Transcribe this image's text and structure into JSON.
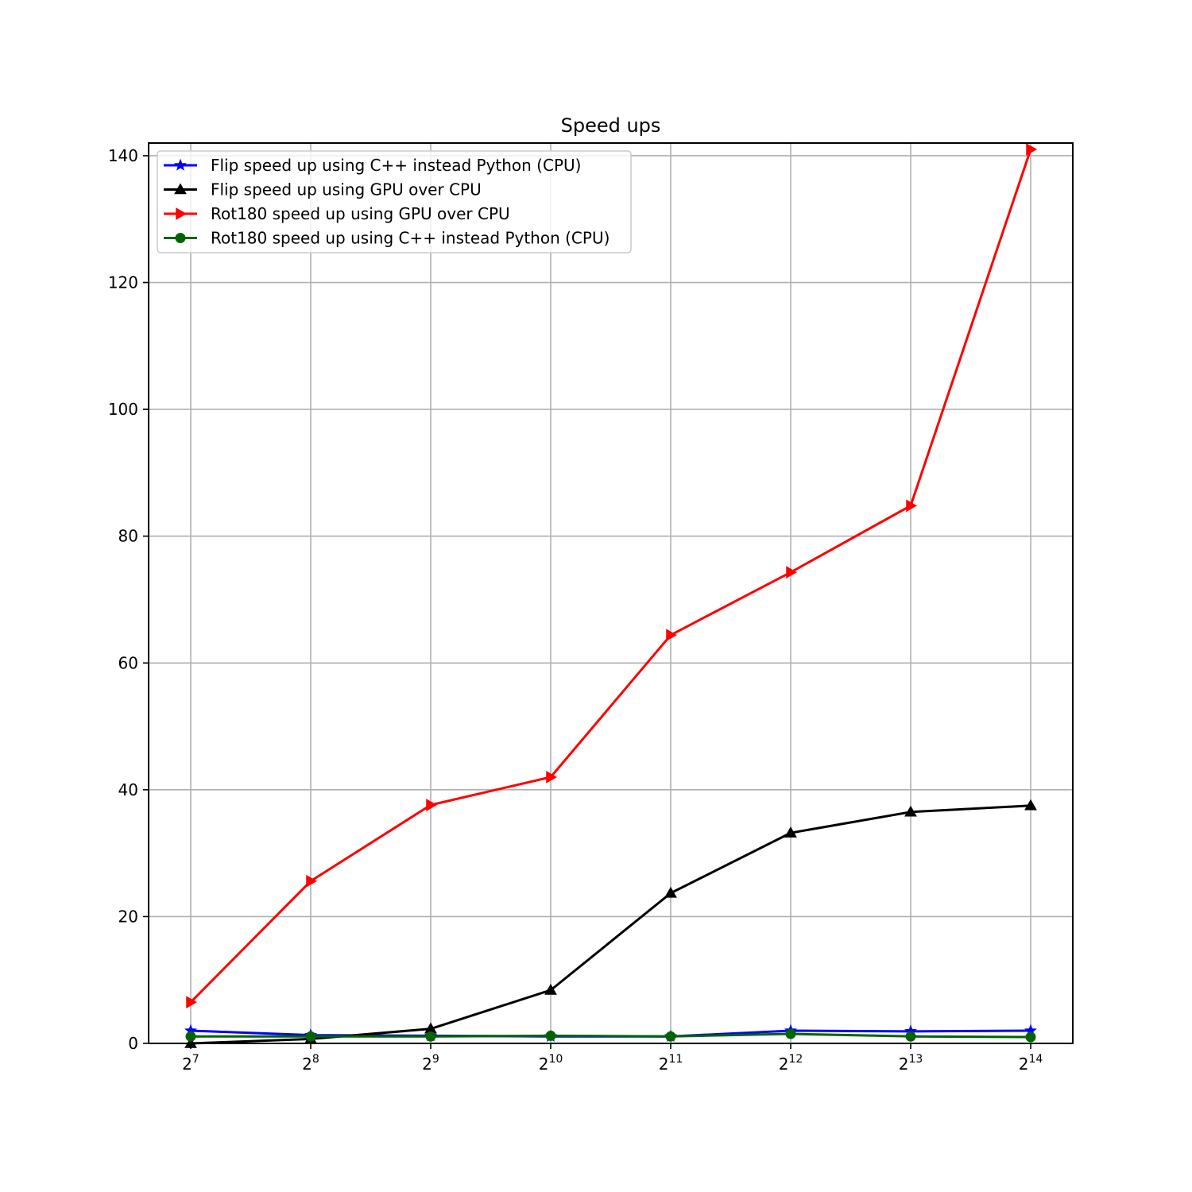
{
  "chart_data": {
    "type": "line",
    "title": "Speed ups",
    "xlabel": "",
    "ylabel": "",
    "x_scale": "log2",
    "x": [
      128,
      256,
      512,
      1024,
      2048,
      4096,
      8192,
      16384
    ],
    "x_tick_labels": [
      {
        "base": "2",
        "exp": "7"
      },
      {
        "base": "2",
        "exp": "8"
      },
      {
        "base": "2",
        "exp": "9"
      },
      {
        "base": "2",
        "exp": "10"
      },
      {
        "base": "2",
        "exp": "11"
      },
      {
        "base": "2",
        "exp": "12"
      },
      {
        "base": "2",
        "exp": "13"
      },
      {
        "base": "2",
        "exp": "14"
      }
    ],
    "y_ticks": [
      0,
      20,
      40,
      60,
      80,
      100,
      120,
      140
    ],
    "y_tick_labels": [
      "0",
      "20",
      "40",
      "60",
      "80",
      "100",
      "120",
      "140"
    ],
    "ylim": [
      0,
      142
    ],
    "grid": true,
    "legend_position": "upper-left",
    "series": [
      {
        "name": "Flip speed up using C++ instead Python (CPU)",
        "color": "#0000ff",
        "marker": "star",
        "values": [
          2.0,
          1.3,
          1.2,
          1.1,
          1.1,
          2.0,
          1.9,
          2.0
        ]
      },
      {
        "name": "Flip speed up using GPU over CPU",
        "color": "#000000",
        "marker": "triangle-up",
        "values": [
          0.0,
          0.7,
          2.3,
          8.4,
          23.7,
          33.2,
          36.5,
          37.5
        ]
      },
      {
        "name": "Rot180 speed up using GPU over CPU",
        "color": "#ff0000",
        "marker": "triangle-right",
        "values": [
          6.5,
          25.6,
          37.6,
          42.0,
          64.4,
          74.3,
          84.8,
          141.0
        ]
      },
      {
        "name": "Rot180 speed up using C++ instead Python (CPU)",
        "color": "#006400",
        "marker": "circle",
        "values": [
          1.1,
          1.1,
          1.1,
          1.2,
          1.1,
          1.5,
          1.1,
          1.0
        ]
      }
    ]
  }
}
